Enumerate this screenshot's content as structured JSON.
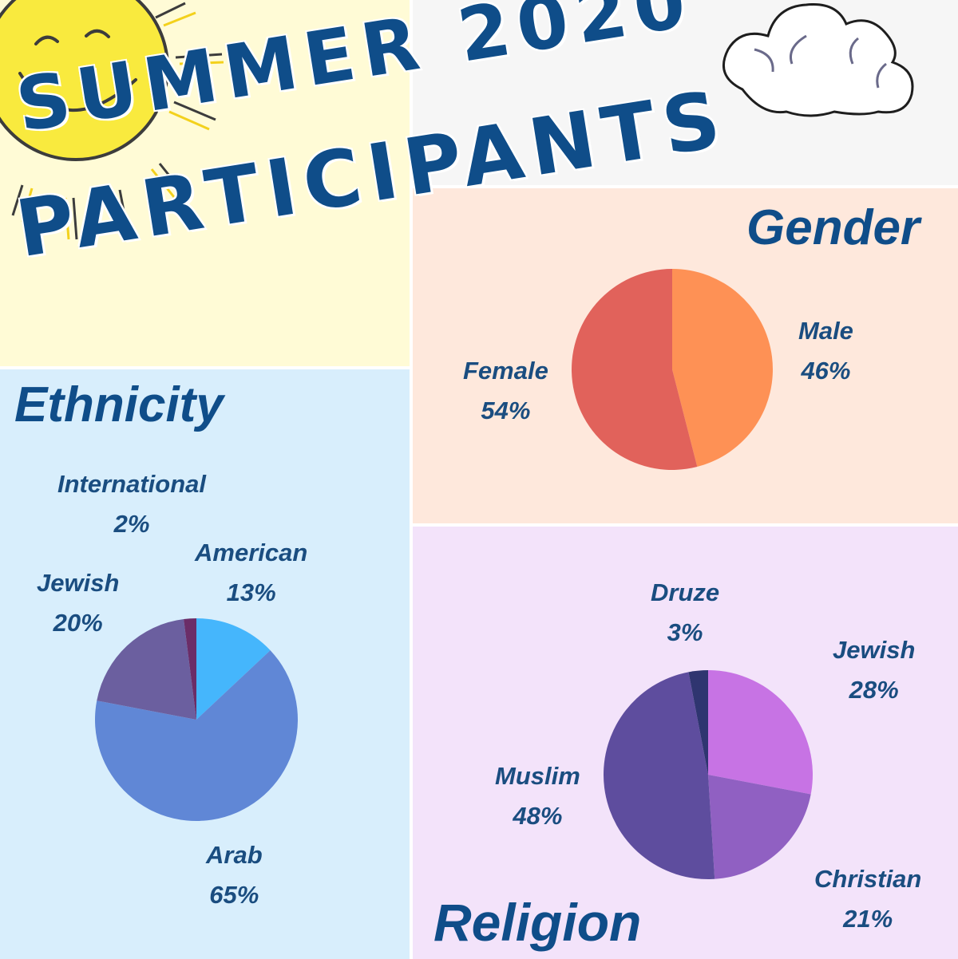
{
  "title": {
    "line1": "SUMMER 2020",
    "line2": "PARTICIPANTS"
  },
  "colors": {
    "heading": "#0f4d89",
    "label": "#1a4d80"
  },
  "chart_data": [
    {
      "type": "pie",
      "title": "Gender",
      "start_angle_deg": 0,
      "slices": [
        {
          "label": "Male",
          "value": 46,
          "display": "46%",
          "color": "#fe9155"
        },
        {
          "label": "Female",
          "value": 54,
          "display": "54%",
          "color": "#e1625b"
        }
      ]
    },
    {
      "type": "pie",
      "title": "Ethnicity",
      "start_angle_deg": 0,
      "slices": [
        {
          "label": "American",
          "value": 13,
          "display": "13%",
          "color": "#45b6fc"
        },
        {
          "label": "Arab",
          "value": 65,
          "display": "65%",
          "color": "#6087d6"
        },
        {
          "label": "Jewish",
          "value": 20,
          "display": "20%",
          "color": "#6b5f9f"
        },
        {
          "label": "International",
          "value": 2,
          "display": "2%",
          "color": "#6b2d68"
        }
      ]
    },
    {
      "type": "pie",
      "title": "Religion",
      "start_angle_deg": 0,
      "slices": [
        {
          "label": "Jewish",
          "value": 28,
          "display": "28%",
          "color": "#c773e4"
        },
        {
          "label": "Christian",
          "value": 21,
          "display": "21%",
          "color": "#9060c2"
        },
        {
          "label": "Muslim",
          "value": 48,
          "display": "48%",
          "color": "#5e4d9e"
        },
        {
          "label": "Druze",
          "value": 3,
          "display": "3%",
          "color": "#2f3570"
        }
      ]
    }
  ]
}
